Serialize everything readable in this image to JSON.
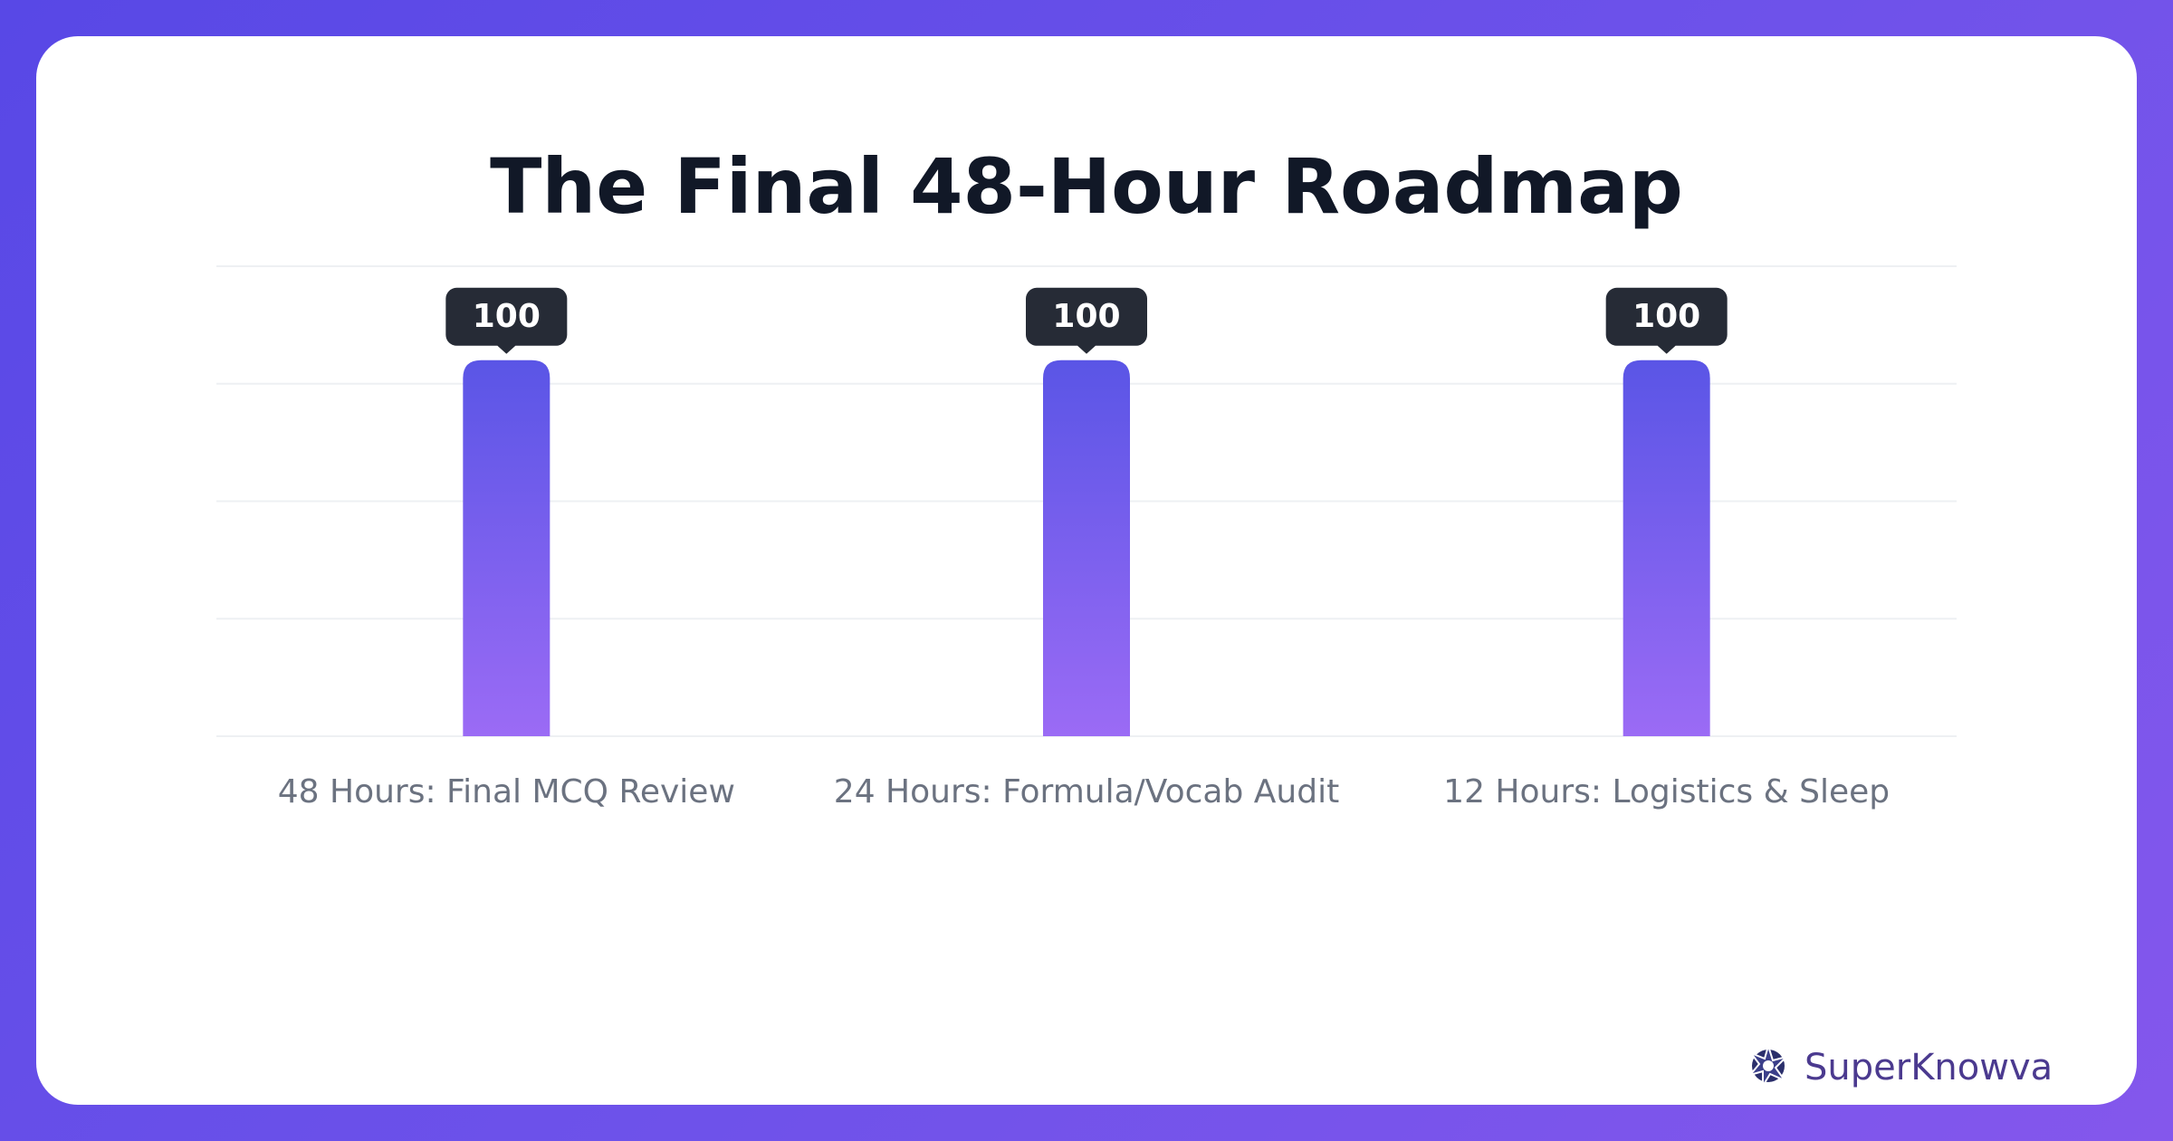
{
  "chart_data": {
    "type": "bar",
    "title": "The Final 48-Hour Roadmap",
    "categories": [
      "48 Hours: Final MCQ Review",
      "24 Hours: Formula/Vocab Audit",
      "12 Hours: Logistics & Sleep"
    ],
    "values": [
      100,
      100,
      100
    ],
    "colors": [
      "#5a55e6",
      "#9b6bf5"
    ],
    "ylim": [
      0,
      125
    ],
    "yticks": [
      0,
      31.25,
      62.5,
      93.75,
      125
    ],
    "grid": true,
    "data_labels": true
  },
  "brand": "SuperKnowva"
}
